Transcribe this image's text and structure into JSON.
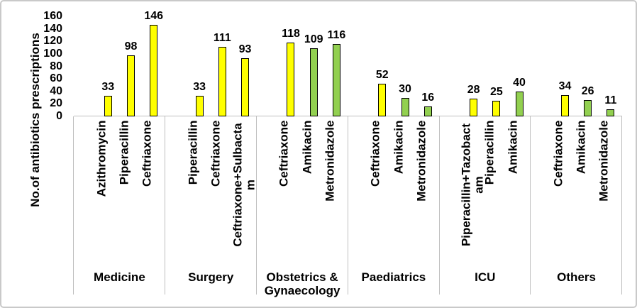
{
  "chart_data": {
    "type": "bar",
    "title": "",
    "ylabel": "No.of antibiotics prescriptions",
    "xlabel": "",
    "ylim": [
      0,
      160
    ],
    "yticks": [
      0,
      20,
      40,
      60,
      80,
      100,
      120,
      140,
      160
    ],
    "grid": false,
    "legend": false,
    "palette": {
      "yellow": "#FFFF00",
      "green": "#92D050",
      "bar_border": "#000000",
      "axis_line": "#bfbfbf",
      "text": "#000000"
    },
    "groups": [
      {
        "label": "Medicine",
        "bars": [
          {
            "name": "Azithromycin",
            "value": 33,
            "color": "yellow"
          },
          {
            "name": "Piperacillin",
            "value": 98,
            "color": "yellow"
          },
          {
            "name": "Ceftriaxone",
            "value": 146,
            "color": "yellow"
          }
        ]
      },
      {
        "label": "Surgery",
        "bars": [
          {
            "name": "Piperacillin",
            "value": 33,
            "color": "yellow"
          },
          {
            "name": "Ceftriaxone",
            "value": 111,
            "color": "yellow"
          },
          {
            "name": "Ceftriaxone+Sulbactam",
            "value": 93,
            "color": "yellow"
          }
        ]
      },
      {
        "label": "Obstetrics & Gynaecology",
        "bars": [
          {
            "name": "Ceftriaxone",
            "value": 118,
            "color": "yellow"
          },
          {
            "name": "Amikacin",
            "value": 109,
            "color": "green"
          },
          {
            "name": "Metronidazole",
            "value": 116,
            "color": "green"
          }
        ]
      },
      {
        "label": "Paediatrics",
        "bars": [
          {
            "name": "Ceftriaxone",
            "value": 52,
            "color": "yellow"
          },
          {
            "name": "Amikacin",
            "value": 30,
            "color": "green"
          },
          {
            "name": "Metronidazole",
            "value": 16,
            "color": "green"
          }
        ]
      },
      {
        "label": "ICU",
        "bars": [
          {
            "name": "Piperacillin+Tazobactam",
            "value": 28,
            "color": "yellow"
          },
          {
            "name": "Piperacillin",
            "value": 25,
            "color": "yellow"
          },
          {
            "name": "Amikacin",
            "value": 40,
            "color": "green"
          }
        ]
      },
      {
        "label": "Others",
        "bars": [
          {
            "name": "Ceftriaxone",
            "value": 34,
            "color": "yellow"
          },
          {
            "name": "Amikacin",
            "value": 26,
            "color": "green"
          },
          {
            "name": "Metronidazole",
            "value": 11,
            "color": "green"
          }
        ]
      }
    ]
  }
}
